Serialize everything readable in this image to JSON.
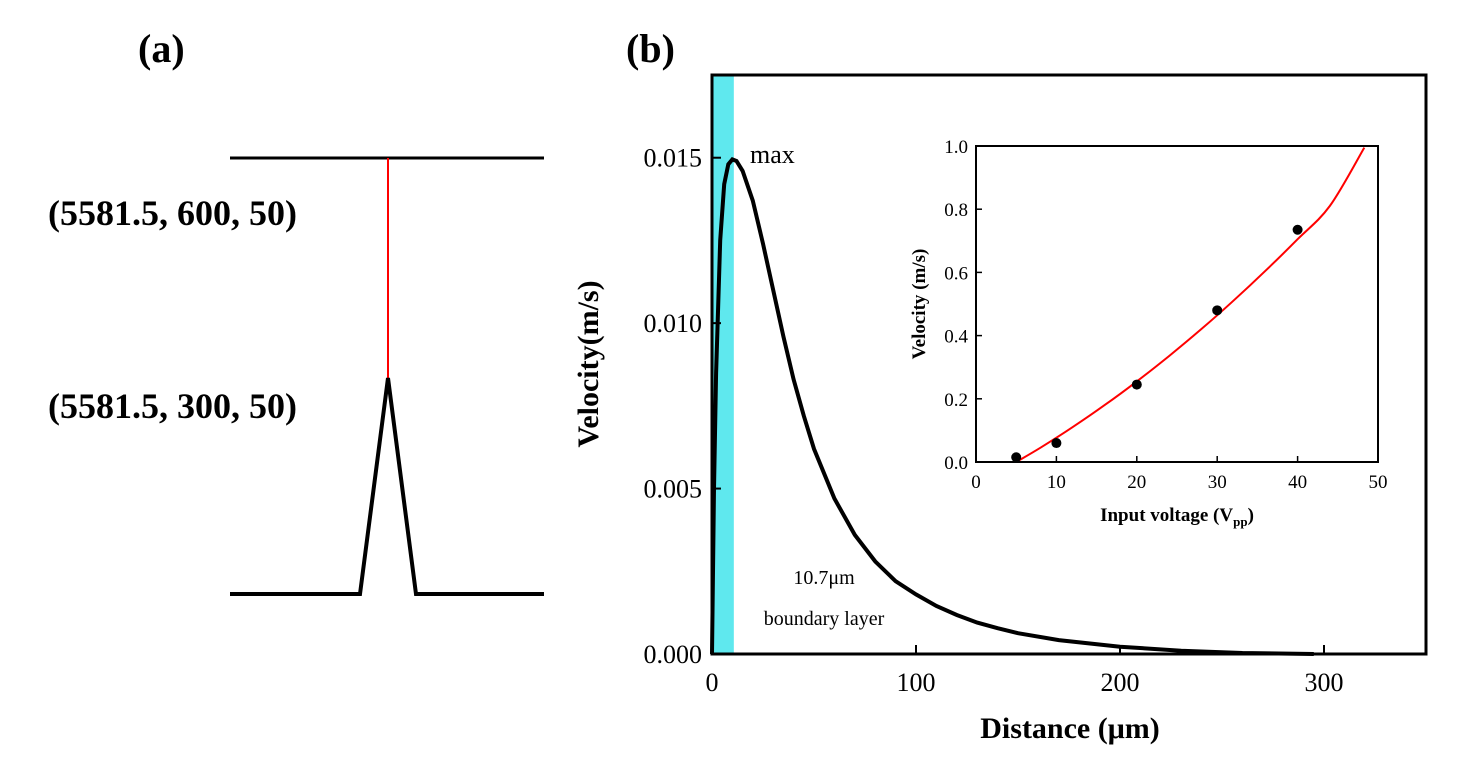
{
  "colors": {
    "line": "#000000",
    "tip_line": "#ff0000",
    "fit": "#ff0000",
    "boundary_band": "#5fe8ee"
  },
  "panel_a": {
    "label": "(a)",
    "top_point_label": "(5581.5, 600, 50)",
    "tip_point_label": "(5581.5, 300, 50)"
  },
  "panel_b": {
    "label": "(b)",
    "annotation_max": "max",
    "annotation_boundary_1": "10.7μm",
    "annotation_boundary_2": "boundary layer"
  },
  "chart_data": [
    {
      "type": "line",
      "xlabel": "Distance (μm)",
      "ylabel": "Velocity(m/s)",
      "xlim": [
        0,
        350
      ],
      "ylim": [
        0,
        0.0175
      ],
      "xticks": [
        "0",
        "100",
        "200",
        "300"
      ],
      "yticks": [
        "0.000",
        "0.005",
        "0.010",
        "0.015"
      ],
      "shaded_region_x": [
        0,
        10.7
      ],
      "grid": false,
      "series": [
        {
          "x": [
            0,
            1,
            2,
            4,
            6,
            8,
            10,
            12,
            15,
            20,
            25,
            30,
            35,
            40,
            45,
            50,
            60,
            70,
            80,
            90,
            100,
            110,
            120,
            130,
            140,
            150,
            170,
            200,
            230,
            260,
            295
          ],
          "y": [
            0,
            0.005,
            0.0085,
            0.0125,
            0.0142,
            0.0148,
            0.01495,
            0.0149,
            0.0146,
            0.0137,
            0.0124,
            0.011,
            0.0096,
            0.0083,
            0.0072,
            0.0062,
            0.0047,
            0.0036,
            0.0028,
            0.0022,
            0.0018,
            0.00145,
            0.00118,
            0.00095,
            0.00078,
            0.00063,
            0.00042,
            0.00022,
            0.0001,
            3e-05,
            0
          ]
        }
      ]
    },
    {
      "type": "scatter",
      "xlabel": "Input voltage (Vpp)",
      "xlabel_main": "Input voltage (V",
      "xlabel_sub": "pp",
      "xlabel_end": ")",
      "ylabel": "Velocity (m/s)",
      "xlim": [
        0,
        50
      ],
      "ylim": [
        0,
        1.0
      ],
      "xticks": [
        "0",
        "10",
        "20",
        "30",
        "40",
        "50"
      ],
      "yticks": [
        "0.0",
        "0.2",
        "0.4",
        "0.6",
        "0.8",
        "1.0"
      ],
      "grid": false,
      "series": [
        {
          "x": [
            5,
            10,
            20,
            30,
            40
          ],
          "y": [
            0.015,
            0.06,
            0.245,
            0.48,
            0.735
          ]
        }
      ],
      "fit": {
        "x": [
          5,
          8,
          12,
          16,
          20,
          24,
          28,
          32,
          36,
          40,
          44,
          48.3
        ],
        "y": [
          0.0,
          0.045,
          0.11,
          0.18,
          0.255,
          0.335,
          0.42,
          0.51,
          0.605,
          0.705,
          0.81,
          0.995
        ]
      }
    }
  ]
}
